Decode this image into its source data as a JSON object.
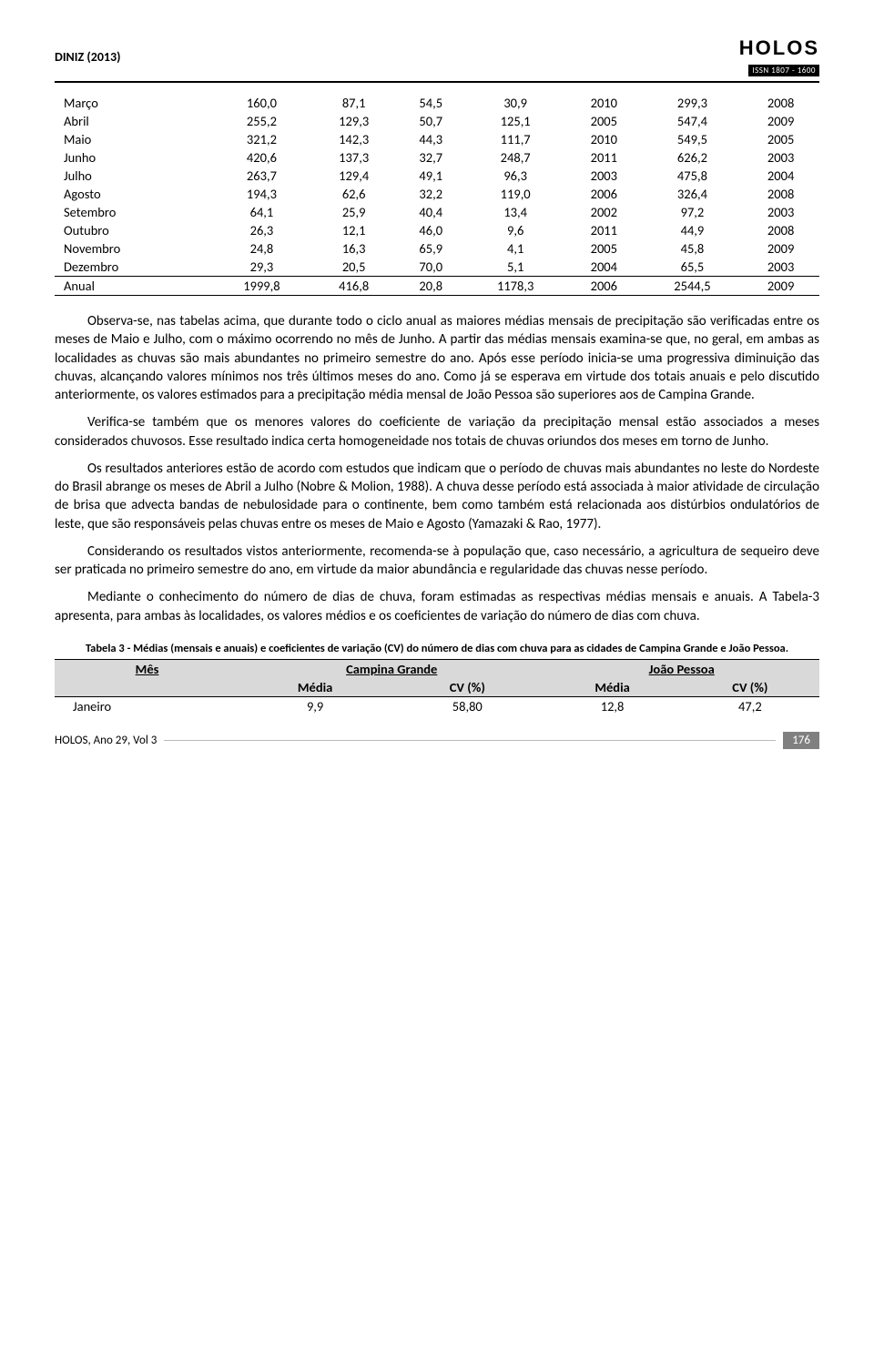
{
  "header": {
    "author": "DINIZ (2013)",
    "logo_main": "HOLOS",
    "logo_sub": "ISSN 1807 - 1600"
  },
  "table1": {
    "rows": [
      {
        "m": "Março",
        "c1": "160,0",
        "c2": "87,1",
        "c3": "54,5",
        "c4": "30,9",
        "c5": "2010",
        "c6": "299,3",
        "c7": "2008"
      },
      {
        "m": "Abril",
        "c1": "255,2",
        "c2": "129,3",
        "c3": "50,7",
        "c4": "125,1",
        "c5": "2005",
        "c6": "547,4",
        "c7": "2009"
      },
      {
        "m": "Maio",
        "c1": "321,2",
        "c2": "142,3",
        "c3": "44,3",
        "c4": "111,7",
        "c5": "2010",
        "c6": "549,5",
        "c7": "2005"
      },
      {
        "m": "Junho",
        "c1": "420,6",
        "c2": "137,3",
        "c3": "32,7",
        "c4": "248,7",
        "c5": "2011",
        "c6": "626,2",
        "c7": "2003"
      },
      {
        "m": "Julho",
        "c1": "263,7",
        "c2": "129,4",
        "c3": "49,1",
        "c4": "96,3",
        "c5": "2003",
        "c6": "475,8",
        "c7": "2004"
      },
      {
        "m": "Agosto",
        "c1": "194,3",
        "c2": "62,6",
        "c3": "32,2",
        "c4": "119,0",
        "c5": "2006",
        "c6": "326,4",
        "c7": "2008"
      },
      {
        "m": "Setembro",
        "c1": "64,1",
        "c2": "25,9",
        "c3": "40,4",
        "c4": "13,4",
        "c5": "2002",
        "c6": "97,2",
        "c7": "2003"
      },
      {
        "m": "Outubro",
        "c1": "26,3",
        "c2": "12,1",
        "c3": "46,0",
        "c4": "9,6",
        "c5": "2011",
        "c6": "44,9",
        "c7": "2008"
      },
      {
        "m": "Novembro",
        "c1": "24,8",
        "c2": "16,3",
        "c3": "65,9",
        "c4": "4,1",
        "c5": "2005",
        "c6": "45,8",
        "c7": "2009"
      },
      {
        "m": "Dezembro",
        "c1": "29,3",
        "c2": "20,5",
        "c3": "70,0",
        "c4": "5,1",
        "c5": "2004",
        "c6": "65,5",
        "c7": "2003"
      }
    ],
    "anual": {
      "m": "Anual",
      "c1": "1999,8",
      "c2": "416,8",
      "c3": "20,8",
      "c4": "1178,3",
      "c5": "2006",
      "c6": "2544,5",
      "c7": "2009"
    }
  },
  "paragraphs": {
    "p1": "Observa-se, nas tabelas acima, que durante todo o ciclo anual as maiores médias mensais de precipitação são verificadas entre os meses de Maio e Julho, com o máximo ocorrendo no mês de Junho. A partir das médias mensais examina-se que, no geral, em ambas as localidades as chuvas são mais abundantes no primeiro semestre do ano. Após esse período inicia-se uma progressiva diminuição das chuvas, alcançando valores mínimos nos três últimos meses do ano. Como já se esperava em virtude dos totais anuais e pelo discutido anteriormente, os valores estimados para a precipitação média mensal de João Pessoa são superiores aos de Campina Grande.",
    "p2": "Verifica-se também que os menores valores do coeficiente de variação da precipitação mensal estão associados a meses considerados chuvosos. Esse resultado indica certa homogeneidade nos totais de chuvas oriundos dos meses em torno de Junho.",
    "p3": "Os resultados anteriores estão de acordo com estudos que indicam que o período de chuvas mais abundantes no leste do Nordeste do Brasil abrange os meses de Abril a Julho (Nobre & Molion, 1988). A chuva desse período está associada à maior atividade de circulação de brisa que advecta bandas de nebulosidade para o continente, bem como também está relacionada aos distúrbios ondulatórios de leste, que são responsáveis pelas chuvas entre os meses de Maio e Agosto (Yamazaki & Rao, 1977).",
    "p4": "Considerando os resultados vistos anteriormente, recomenda-se à população que, caso necessário, a agricultura de sequeiro deve ser praticada no primeiro semestre do ano, em virtude da maior abundância e regularidade das chuvas nesse período.",
    "p5": "Mediante o conhecimento do número de dias de chuva, foram estimadas as respectivas médias mensais e anuais. A Tabela-3 apresenta, para ambas às localidades, os valores médios e os coeficientes de variação do número de dias com chuva."
  },
  "table3": {
    "caption": "Tabela 3 - Médias (mensais e anuais) e coeficientes de variação (CV) do número de dias com chuva para as cidades de Campina Grande e João Pessoa.",
    "head": {
      "mes": "Mês",
      "city1": "Campina Grande",
      "city2": "João Pessoa",
      "media": "Média",
      "cv": "CV (%)"
    },
    "row": {
      "m": "Janeiro",
      "a": "9,9",
      "b": "58,80",
      "c": "12,8",
      "d": "47,2"
    }
  },
  "footer": {
    "left": "HOLOS, Ano 29, Vol 3",
    "page": "176"
  }
}
